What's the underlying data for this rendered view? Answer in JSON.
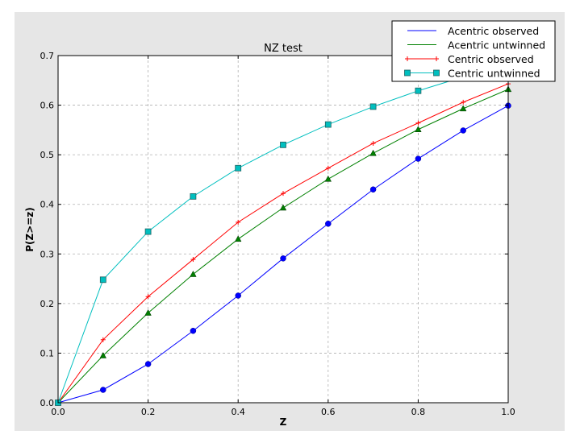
{
  "chart_data": {
    "type": "line",
    "title": "NZ test",
    "xlabel": "Z",
    "ylabel": "P(Z>=z)",
    "xlim": [
      0.0,
      1.0
    ],
    "ylim": [
      0.0,
      0.7
    ],
    "xticks": [
      "0.0",
      "0.2",
      "0.4",
      "0.6",
      "0.8",
      "1.0"
    ],
    "yticks": [
      "0.0",
      "0.1",
      "0.2",
      "0.3",
      "0.4",
      "0.5",
      "0.6",
      "0.7"
    ],
    "grid": true,
    "legend_position": "top-right",
    "x": [
      0.0,
      0.1,
      0.2,
      0.3,
      0.4,
      0.5,
      0.6,
      0.7,
      0.8,
      0.9,
      1.0
    ],
    "series": [
      {
        "name": "Acentric observed",
        "color": "#0000ff",
        "marker": "circle",
        "legend_marker": "none",
        "values": [
          0.0,
          0.026,
          0.078,
          0.145,
          0.216,
          0.291,
          0.361,
          0.43,
          0.492,
          0.549,
          0.599
        ]
      },
      {
        "name": "Acentric untwinned",
        "color": "#008000",
        "marker": "triangle",
        "legend_marker": "none",
        "values": [
          0.0,
          0.095,
          0.181,
          0.259,
          0.33,
          0.393,
          0.451,
          0.503,
          0.551,
          0.593,
          0.632
        ]
      },
      {
        "name": "Centric observed",
        "color": "#ff0000",
        "marker": "plus",
        "legend_marker": "plus",
        "values": [
          0.0,
          0.127,
          0.214,
          0.289,
          0.364,
          0.422,
          0.473,
          0.523,
          0.564,
          0.606,
          0.643
        ]
      },
      {
        "name": "Centric untwinned",
        "color": "#00bfbf",
        "marker": "square",
        "legend_marker": "square",
        "values": [
          0.0,
          0.248,
          0.345,
          0.416,
          0.473,
          0.52,
          0.561,
          0.597,
          0.629,
          0.657,
          0.683
        ]
      }
    ]
  }
}
